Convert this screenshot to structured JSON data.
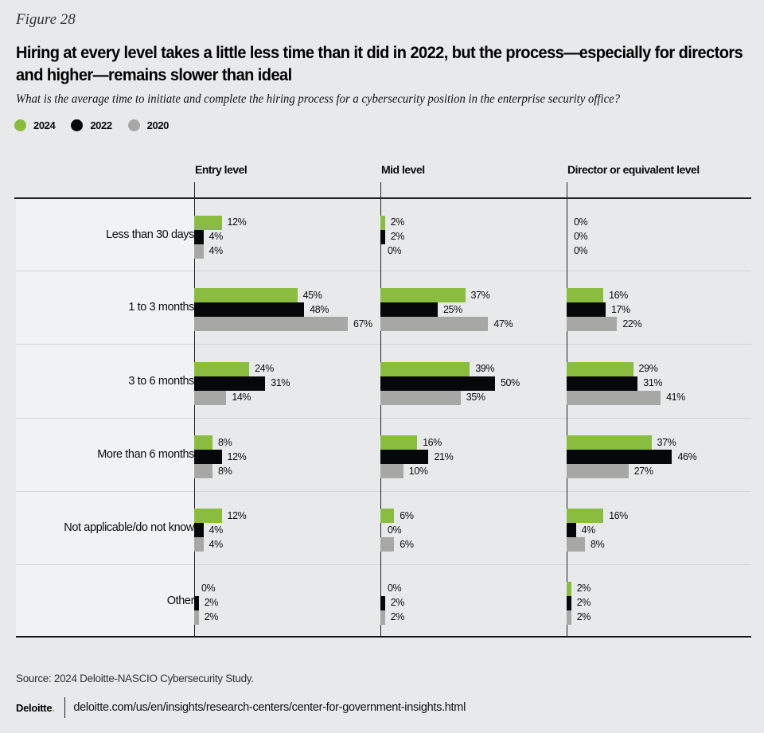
{
  "figure_label": "Figure 28",
  "title": "Hiring at every level takes a little less time than it did in 2022, but the process—especially for directors and higher—remains slower than ideal",
  "subtitle": "What is the average time to initiate and complete the hiring process for a cybersecurity position in the enterprise security office?",
  "colors": {
    "2024": "#8abd3f",
    "2022": "#050708",
    "2020": "#a7a7a5"
  },
  "source": "Source: 2024 Deloitte-NASCIO Cybersecurity Study.",
  "footer": {
    "logo": "Deloitte",
    "logo_dot": ".",
    "url": "deloitte.com/us/en/insights/research-centers/center-for-government-insights.html"
  },
  "chart_data": {
    "type": "bar",
    "orientation": "horizontal",
    "title": "Hiring at every level takes a little less time than it did in 2022, but the process—especially for directors and higher—remains slower than ideal",
    "subtitle": "What is the average time to initiate and complete the hiring process for a cybersecurity position in the enterprise security office?",
    "legend": [
      "2024",
      "2022",
      "2020"
    ],
    "legend_position": "top-left",
    "categories": [
      "Less than 30 days",
      "1 to 3 months",
      "3 to 6 months",
      "More than 6 months",
      "Not applicable/do not know",
      "Other"
    ],
    "panels": [
      {
        "name": "Entry level",
        "series": [
          {
            "name": "2024",
            "values": [
              12,
              45,
              24,
              8,
              12,
              0
            ]
          },
          {
            "name": "2022",
            "values": [
              4,
              48,
              31,
              12,
              4,
              2
            ]
          },
          {
            "name": "2020",
            "values": [
              4,
              67,
              14,
              8,
              4,
              2
            ]
          }
        ]
      },
      {
        "name": "Mid level",
        "series": [
          {
            "name": "2024",
            "values": [
              2,
              37,
              39,
              16,
              6,
              0
            ]
          },
          {
            "name": "2022",
            "values": [
              2,
              25,
              50,
              21,
              0,
              2
            ]
          },
          {
            "name": "2020",
            "values": [
              0,
              47,
              35,
              10,
              6,
              2
            ]
          }
        ]
      },
      {
        "name": "Director or equivalent level",
        "series": [
          {
            "name": "2024",
            "values": [
              0,
              16,
              29,
              37,
              16,
              2
            ]
          },
          {
            "name": "2022",
            "values": [
              0,
              17,
              31,
              46,
              4,
              2
            ]
          },
          {
            "name": "2020",
            "values": [
              0,
              22,
              41,
              27,
              8,
              2
            ]
          }
        ]
      }
    ],
    "value_suffix": "%",
    "xlim": [
      0,
      100
    ],
    "grid": false
  }
}
